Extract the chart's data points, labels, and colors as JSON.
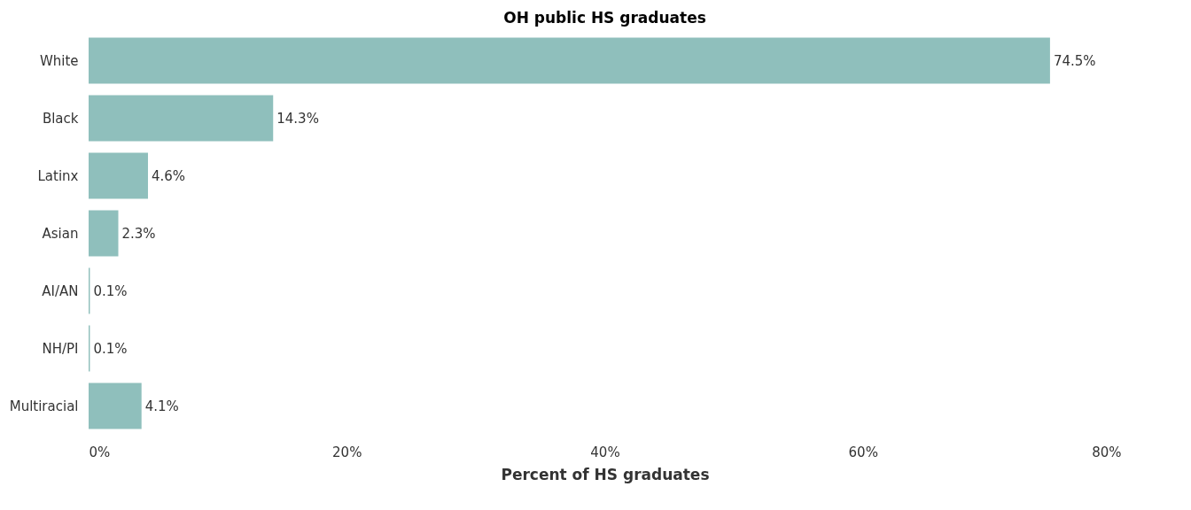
{
  "chart_data": {
    "type": "bar",
    "orientation": "horizontal",
    "title": "OH public HS graduates",
    "xlabel": "Percent of HS graduates",
    "categories": [
      "White",
      "Black",
      "Latinx",
      "Asian",
      "AI/AN",
      "NH/PI",
      "Multiracial"
    ],
    "values": [
      74.5,
      14.3,
      4.6,
      2.3,
      0.1,
      0.1,
      4.1
    ],
    "value_labels": [
      "74.5%",
      "14.3%",
      "4.6%",
      "2.3%",
      "0.1%",
      "0.1%",
      "4.1%"
    ],
    "color": "#8fbfbc",
    "xlim": [
      0,
      80
    ],
    "xticks": [
      {
        "value": 0,
        "label": "0%"
      },
      {
        "value": 20,
        "label": "20%"
      },
      {
        "value": 40,
        "label": "40%"
      },
      {
        "value": 60,
        "label": "60%"
      },
      {
        "value": 80,
        "label": "80%"
      }
    ],
    "grid": false
  }
}
